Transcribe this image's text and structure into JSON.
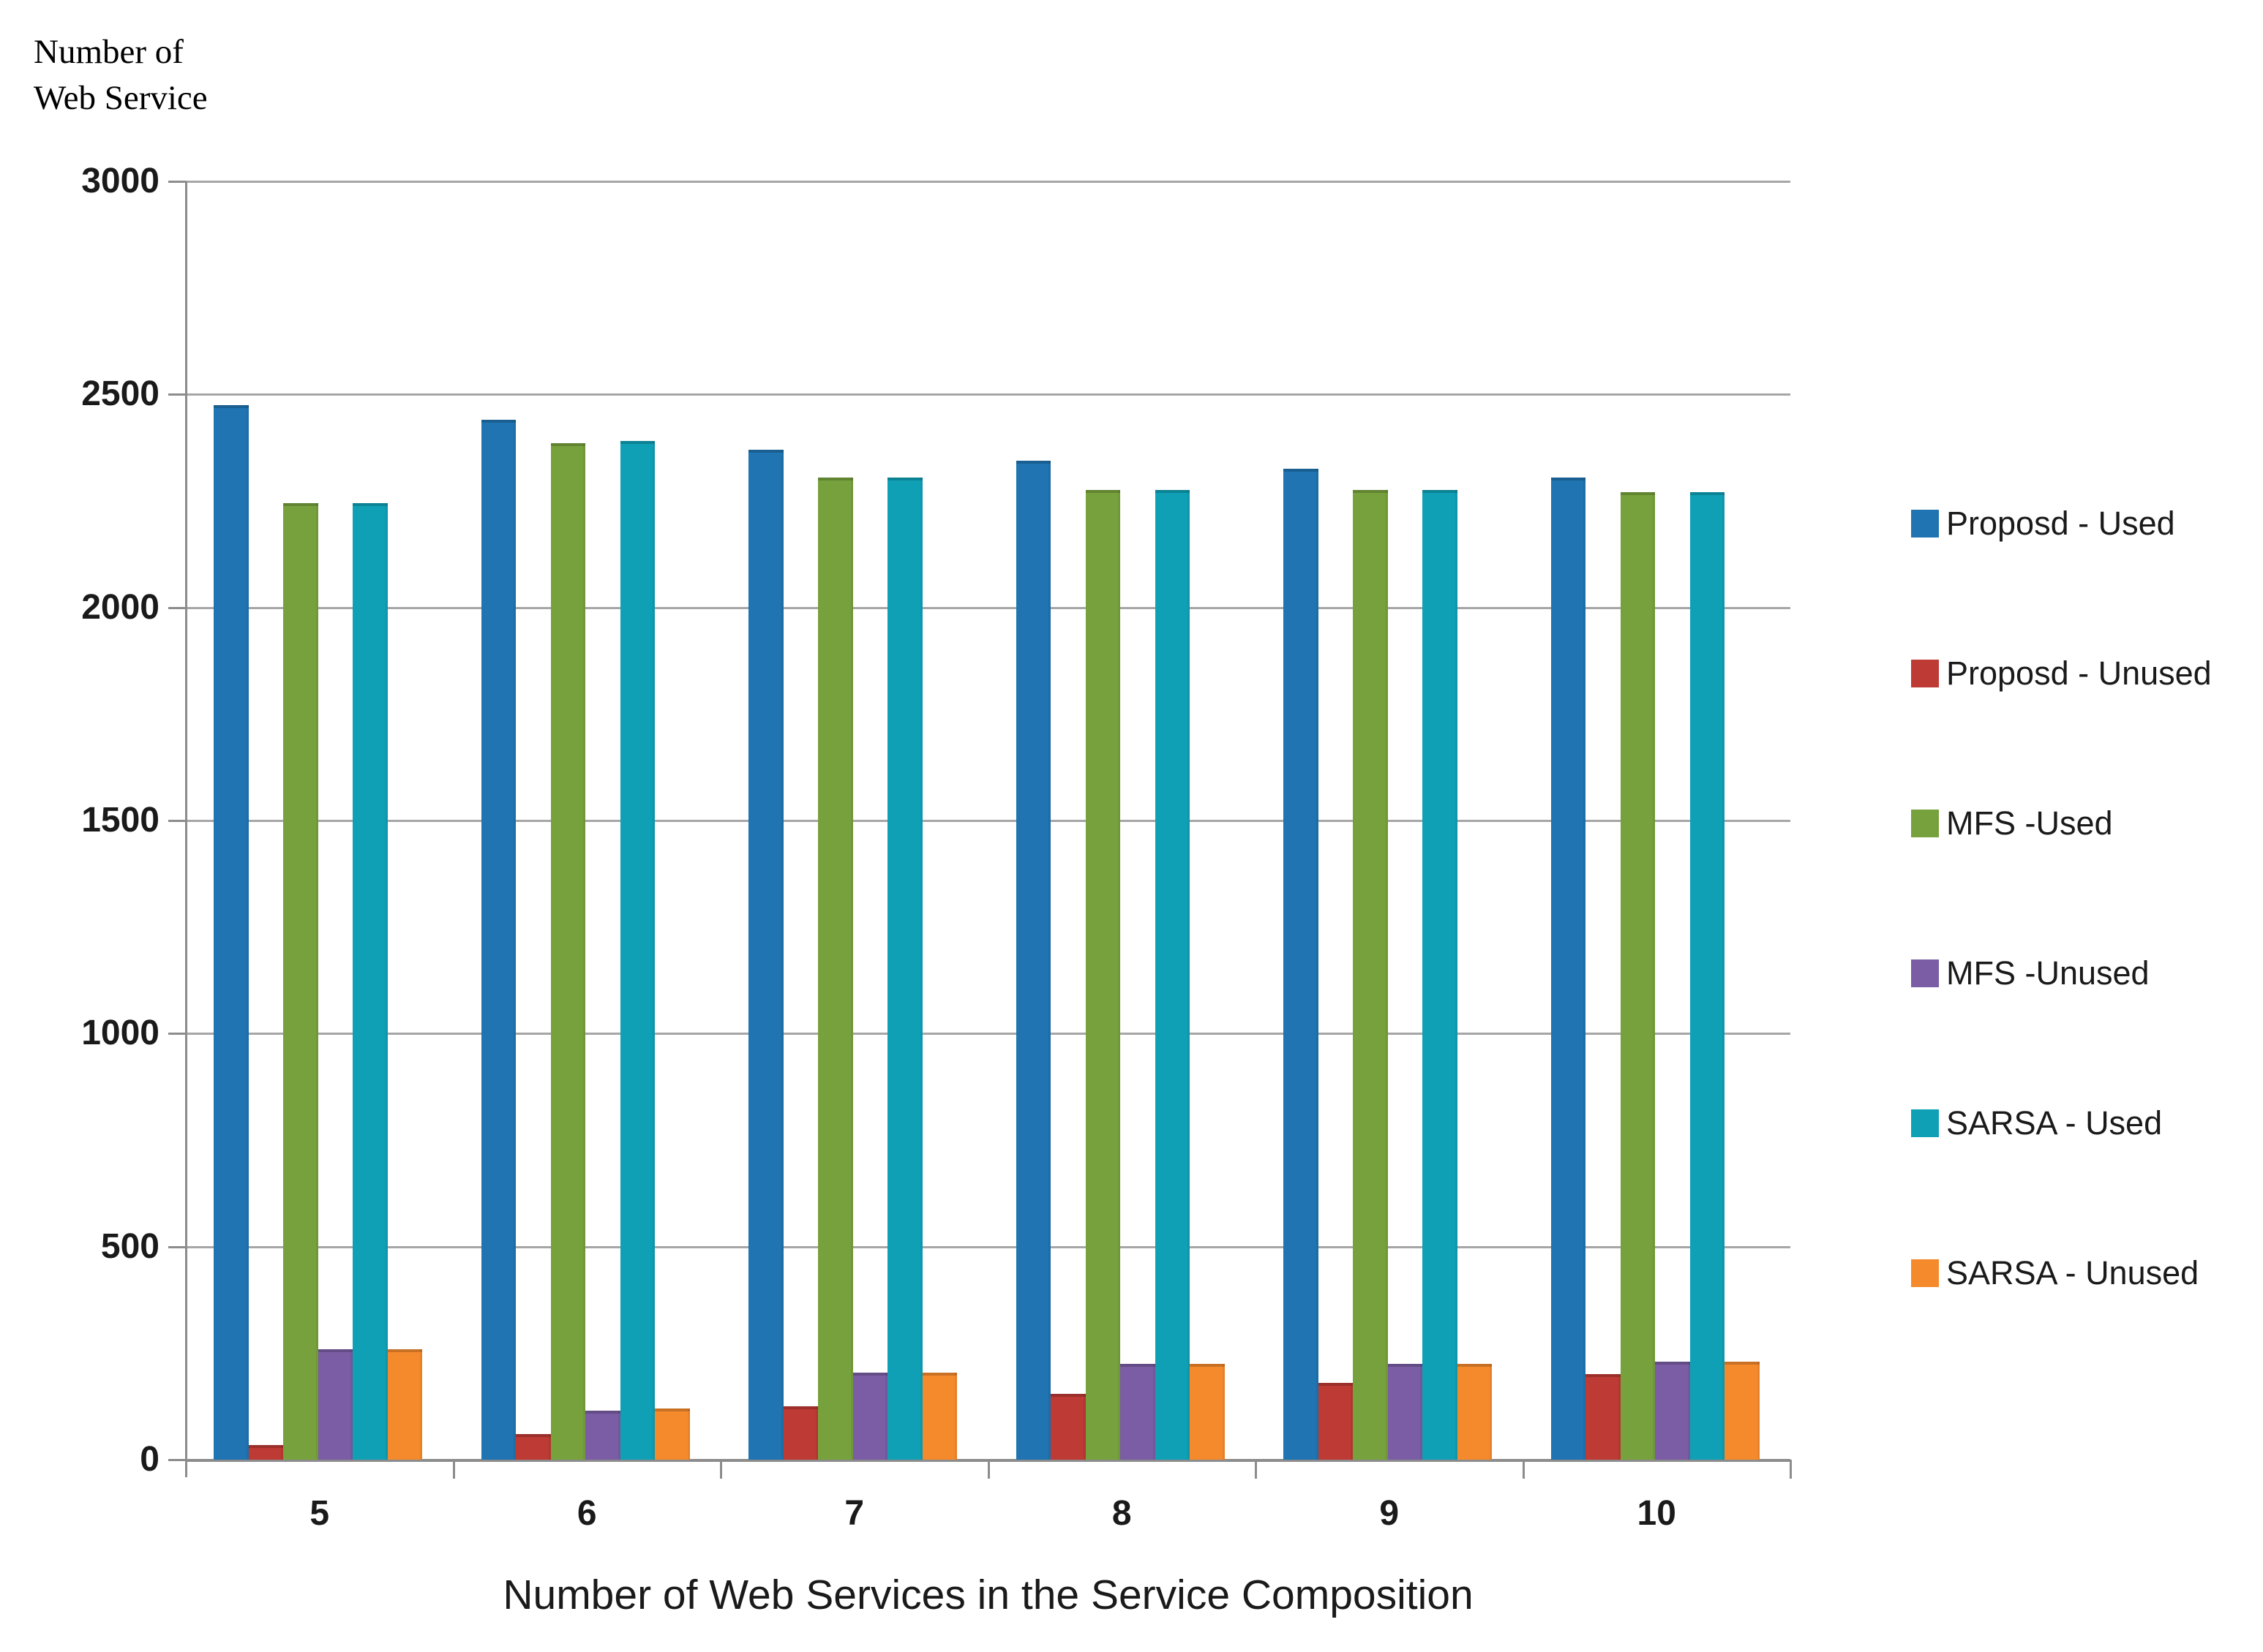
{
  "y_axis": {
    "title_lines": [
      "Number of",
      "Web Service"
    ],
    "tick_labels": [
      "3000",
      "2500",
      "2000",
      "1500",
      "1000",
      "500",
      "0"
    ]
  },
  "x_axis": {
    "title": "Number of Web Services in the Service Composition",
    "categories": [
      "5",
      "6",
      "7",
      "8",
      "9",
      "10"
    ]
  },
  "chart_data": {
    "type": "bar",
    "title": "",
    "xlabel": "Number of Web Services in the Service Composition",
    "ylabel": "Number of Web Service",
    "ylim": [
      0,
      3000
    ],
    "ytick_step": 500,
    "grid": true,
    "legend_position": "right",
    "categories": [
      "5",
      "6",
      "7",
      "8",
      "9",
      "10"
    ],
    "series": [
      {
        "name": "Proposd - Used",
        "color": "#1f74b1",
        "values": [
          2475,
          2440,
          2370,
          2345,
          2325,
          2305
        ]
      },
      {
        "name": "Proposd - Unused",
        "color": "#be3a34",
        "values": [
          35,
          60,
          125,
          155,
          180,
          200
        ]
      },
      {
        "name": "MFS -Used",
        "color": "#77a13c",
        "values": [
          2245,
          2385,
          2305,
          2275,
          2275,
          2270
        ]
      },
      {
        "name": "MFS -Unused",
        "color": "#7a5da4",
        "values": [
          260,
          115,
          205,
          225,
          225,
          230
        ]
      },
      {
        "name": "SARSA - Used",
        "color": "#0fa0b6",
        "values": [
          2245,
          2390,
          2305,
          2275,
          2275,
          2270
        ]
      },
      {
        "name": "SARSA - Unused",
        "color": "#f58a2d",
        "values": [
          260,
          120,
          205,
          225,
          225,
          230
        ]
      }
    ]
  }
}
